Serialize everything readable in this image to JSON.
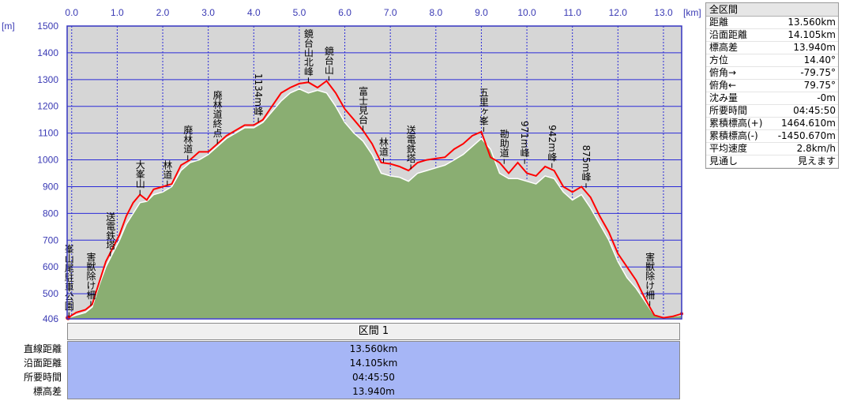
{
  "chart_data": {
    "type": "area",
    "x_unit": "[km]",
    "y_unit": "[m]",
    "xlim": [
      -0.1,
      13.4
    ],
    "ylim": [
      406,
      1500
    ],
    "x_ticks": [
      "0.0",
      "1.0",
      "2.0",
      "3.0",
      "4.0",
      "5.0",
      "6.0",
      "7.0",
      "8.0",
      "9.0",
      "10.0",
      "11.0",
      "12.0",
      "13.0"
    ],
    "y_ticks": [
      "1500",
      "1400",
      "1300",
      "1200",
      "1100",
      "1000",
      "900",
      "800",
      "700",
      "600",
      "500",
      "406"
    ],
    "grid": true,
    "series": [
      {
        "kind": "filled-area",
        "color": "#8aae72",
        "x": [
          -0.08,
          0.1,
          0.3,
          0.45,
          0.6,
          0.75,
          0.9,
          1.05,
          1.2,
          1.35,
          1.5,
          1.65,
          1.8,
          2.0,
          2.2,
          2.4,
          2.6,
          2.8,
          3.0,
          3.2,
          3.4,
          3.6,
          3.8,
          4.0,
          4.2,
          4.4,
          4.6,
          4.8,
          5.0,
          5.2,
          5.4,
          5.6,
          5.8,
          6.0,
          6.2,
          6.4,
          6.6,
          6.8,
          7.0,
          7.2,
          7.4,
          7.6,
          7.8,
          8.0,
          8.2,
          8.4,
          8.6,
          8.8,
          9.0,
          9.2,
          9.4,
          9.6,
          9.8,
          10.0,
          10.2,
          10.4,
          10.6,
          10.8,
          11.0,
          11.2,
          11.4,
          11.6,
          11.8,
          12.0,
          12.2,
          12.4,
          12.6,
          12.8,
          13.0,
          13.2,
          13.4
        ],
        "y": [
          410,
          420,
          430,
          450,
          530,
          600,
          650,
          700,
          760,
          800,
          840,
          845,
          870,
          880,
          900,
          960,
          990,
          1000,
          1020,
          1050,
          1080,
          1100,
          1120,
          1120,
          1140,
          1180,
          1220,
          1250,
          1265,
          1250,
          1260,
          1250,
          1200,
          1140,
          1100,
          1070,
          1020,
          950,
          940,
          935,
          920,
          950,
          960,
          970,
          980,
          1000,
          1020,
          1050,
          1080,
          1040,
          950,
          930,
          930,
          920,
          910,
          940,
          930,
          880,
          850,
          870,
          820,
          760,
          700,
          620,
          560,
          520,
          470,
          420,
          412,
          415,
          420
        ]
      },
      {
        "kind": "line",
        "color": "#ff0000",
        "x": [
          -0.08,
          0.1,
          0.3,
          0.45,
          0.6,
          0.75,
          0.9,
          1.05,
          1.2,
          1.35,
          1.5,
          1.65,
          1.8,
          2.0,
          2.2,
          2.4,
          2.6,
          2.8,
          3.0,
          3.2,
          3.4,
          3.6,
          3.8,
          4.0,
          4.2,
          4.4,
          4.6,
          4.8,
          5.0,
          5.2,
          5.4,
          5.6,
          5.8,
          6.0,
          6.2,
          6.4,
          6.6,
          6.8,
          7.0,
          7.2,
          7.4,
          7.6,
          7.8,
          8.0,
          8.2,
          8.4,
          8.6,
          8.8,
          9.0,
          9.2,
          9.4,
          9.6,
          9.8,
          10.0,
          10.2,
          10.4,
          10.6,
          10.8,
          11.0,
          11.2,
          11.4,
          11.6,
          11.8,
          12.0,
          12.2,
          12.4,
          12.6,
          12.8,
          13.0,
          13.2,
          13.4
        ],
        "y": [
          410,
          430,
          440,
          460,
          540,
          620,
          670,
          720,
          790,
          840,
          870,
          850,
          890,
          900,
          910,
          980,
          1000,
          1030,
          1030,
          1060,
          1090,
          1110,
          1130,
          1130,
          1150,
          1200,
          1250,
          1270,
          1285,
          1290,
          1270,
          1295,
          1250,
          1190,
          1150,
          1110,
          1060,
          990,
          985,
          975,
          960,
          990,
          1000,
          1005,
          1010,
          1040,
          1060,
          1090,
          1105,
          1010,
          990,
          950,
          990,
          950,
          940,
          975,
          960,
          900,
          880,
          900,
          860,
          790,
          730,
          650,
          600,
          550,
          480,
          420,
          410,
          415,
          425
        ]
      }
    ],
    "waypoints": [
      {
        "x": -0.06,
        "y": 413,
        "label": "峯山尾駐車公園"
      },
      {
        "x": 0.42,
        "y": 455,
        "label": "害獣除け柵"
      },
      {
        "x": 0.85,
        "y": 640,
        "label": "送電鉄塔"
      },
      {
        "x": 1.5,
        "y": 870,
        "label": "大峯山"
      },
      {
        "x": 2.1,
        "y": 905,
        "label": "林道"
      },
      {
        "x": 2.55,
        "y": 1000,
        "label": "廃林道"
      },
      {
        "x": 3.2,
        "y": 1060,
        "label": "廃林道終点"
      },
      {
        "x": 4.1,
        "y": 1140,
        "label": "1134m峰"
      },
      {
        "x": 5.2,
        "y": 1290,
        "label": "鏡台山北峰"
      },
      {
        "x": 5.65,
        "y": 1295,
        "label": "鏡台山"
      },
      {
        "x": 6.4,
        "y": 1110,
        "label": "富士見台"
      },
      {
        "x": 6.85,
        "y": 990,
        "label": "林道"
      },
      {
        "x": 7.45,
        "y": 965,
        "label": "送電鉄塔"
      },
      {
        "x": 9.05,
        "y": 1105,
        "label": "五里ヶ峯"
      },
      {
        "x": 9.5,
        "y": 985,
        "label": "勘助道"
      },
      {
        "x": 9.95,
        "y": 985,
        "label": "971m峰"
      },
      {
        "x": 10.55,
        "y": 970,
        "label": "942m峰"
      },
      {
        "x": 11.3,
        "y": 895,
        "label": "875m峰"
      },
      {
        "x": 12.7,
        "y": 455,
        "label": "害獣除け柵"
      }
    ]
  },
  "info_panel": {
    "title": "全区間",
    "rows": [
      {
        "label": "距離",
        "value": "13.560km"
      },
      {
        "label": "沿面距離",
        "value": "14.105km"
      },
      {
        "label": "標高差",
        "value": "13.940m"
      },
      {
        "label": "方位",
        "value": "14.40°"
      },
      {
        "label": "俯角→",
        "value": "-79.75°"
      },
      {
        "label": "俯角←",
        "value": "79.75°"
      },
      {
        "label": "沈み量",
        "value": "-0m"
      },
      {
        "label": "所要時間",
        "value": "04:45:50"
      },
      {
        "label": "累積標高(+)",
        "value": "1464.610m"
      },
      {
        "label": "累積標高(-)",
        "value": "-1450.670m"
      },
      {
        "label": "平均速度",
        "value": "2.8km/h"
      },
      {
        "label": "見通し",
        "value": "見えます"
      }
    ]
  },
  "section": {
    "title": "区間 1",
    "labels": [
      "直線距離",
      "沿面距離",
      "所要時間",
      "標高差"
    ],
    "values": [
      "13.560km",
      "14.105km",
      "04:45:50",
      "13.940m"
    ]
  },
  "colors": {
    "plot_bg": "#d6d6d6",
    "grid": "#2a2ad8",
    "axis_text": "#3a3ab4",
    "area": "#8aae72",
    "line": "#ff0000",
    "section_bg": "#a6b6f6"
  }
}
